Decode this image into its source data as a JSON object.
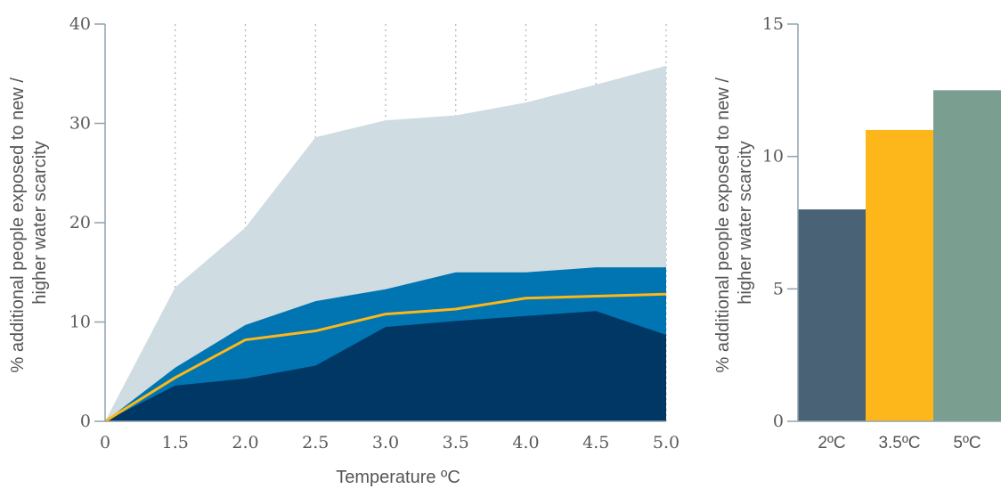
{
  "chart_data": [
    {
      "type": "area",
      "title": "",
      "xlabel": "Temperature ºC",
      "ylabel": "% additional people exposed to new / higher water scarcity",
      "x": [
        0,
        1.5,
        2.0,
        2.5,
        3.0,
        3.5,
        4.0,
        4.5,
        5.0
      ],
      "xtick_labels": [
        "0",
        "1.5",
        "2.0",
        "2.5",
        "3.0",
        "3.5",
        "4.0",
        "4.5",
        "5.0"
      ],
      "yticks": [
        0,
        10,
        20,
        30,
        40
      ],
      "ylim": [
        0,
        40
      ],
      "grid": "vertical dotted",
      "series": [
        {
          "role": "outer-range-upper",
          "values": [
            0,
            13.5,
            19.5,
            28.6,
            30.3,
            30.8,
            32.1,
            33.9,
            35.8
          ],
          "color": "#cfdce1"
        },
        {
          "role": "inner-range-upper",
          "values": [
            0,
            5.4,
            9.7,
            12.1,
            13.3,
            15.0,
            15.0,
            15.5,
            15.5
          ],
          "color": "#0075b2"
        },
        {
          "role": "inner-range-lower",
          "values": [
            0,
            3.6,
            4.3,
            5.6,
            9.5,
            10.1,
            10.6,
            11.1,
            8.7
          ],
          "color": "#003764"
        },
        {
          "role": "central-estimate",
          "values": [
            0,
            4.4,
            8.2,
            9.1,
            10.8,
            11.3,
            12.4,
            12.6,
            12.8
          ],
          "color": "#fdb71a"
        }
      ]
    },
    {
      "type": "bar",
      "title": "",
      "xlabel": "",
      "ylabel": "% additional people exposed to new / higher water scarcity",
      "categories": [
        "2ºC",
        "3.5ºC",
        "5ºC"
      ],
      "values": [
        8.0,
        11.0,
        12.5
      ],
      "colors": [
        "#4a6275",
        "#fdb71a",
        "#7a9e8f"
      ],
      "yticks": [
        0,
        5,
        10,
        15
      ],
      "ylim": [
        0,
        15
      ],
      "grid": "off"
    }
  ]
}
